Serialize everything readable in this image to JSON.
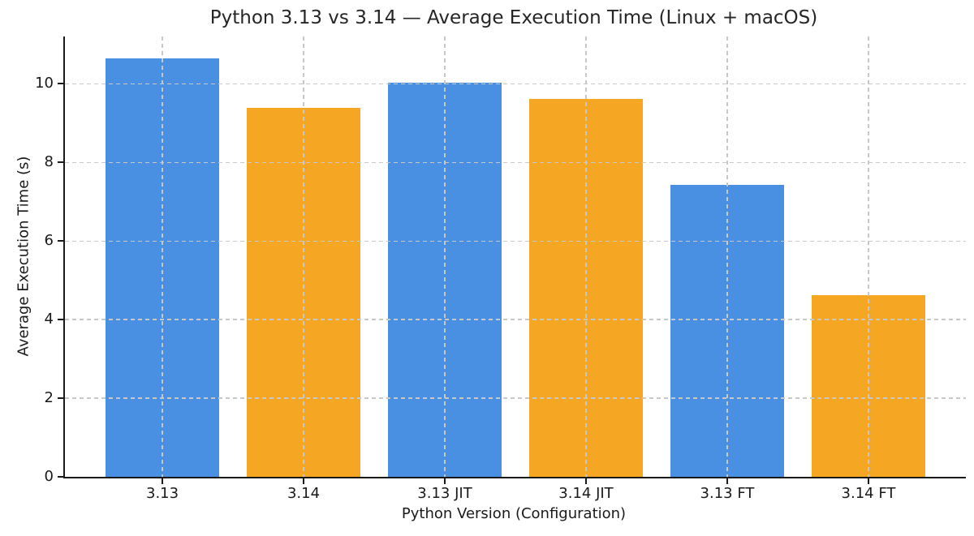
{
  "chart_data": {
    "type": "bar",
    "title": "Python 3.13 vs 3.14 — Average Execution Time (Linux + macOS)",
    "xlabel": "Python Version (Configuration)",
    "ylabel": "Average Execution Time (s)",
    "categories": [
      "3.13",
      "3.14",
      "3.13 JIT",
      "3.14 JIT",
      "3.13 FT",
      "3.14 FT"
    ],
    "values": [
      10.64,
      9.38,
      10.02,
      9.62,
      7.42,
      4.61
    ],
    "bar_colors": [
      "#4a90e2",
      "#f5a623",
      "#4a90e2",
      "#f5a623",
      "#4a90e2",
      "#f5a623"
    ],
    "yticks": [
      0,
      2,
      4,
      6,
      8,
      10
    ],
    "ylim": [
      0,
      11.2
    ],
    "bar_width_fraction": 0.8,
    "grid": "dashed gray, horizontal and vertical, drawn above bars",
    "legend_position": "none",
    "spines": [
      "left",
      "bottom"
    ]
  },
  "colors": {
    "blue_bar": "#4a90e2",
    "orange_bar": "#f5a623",
    "grid": "#c8c8c8",
    "axis": "#1a1a1a",
    "background": "#ffffff"
  }
}
